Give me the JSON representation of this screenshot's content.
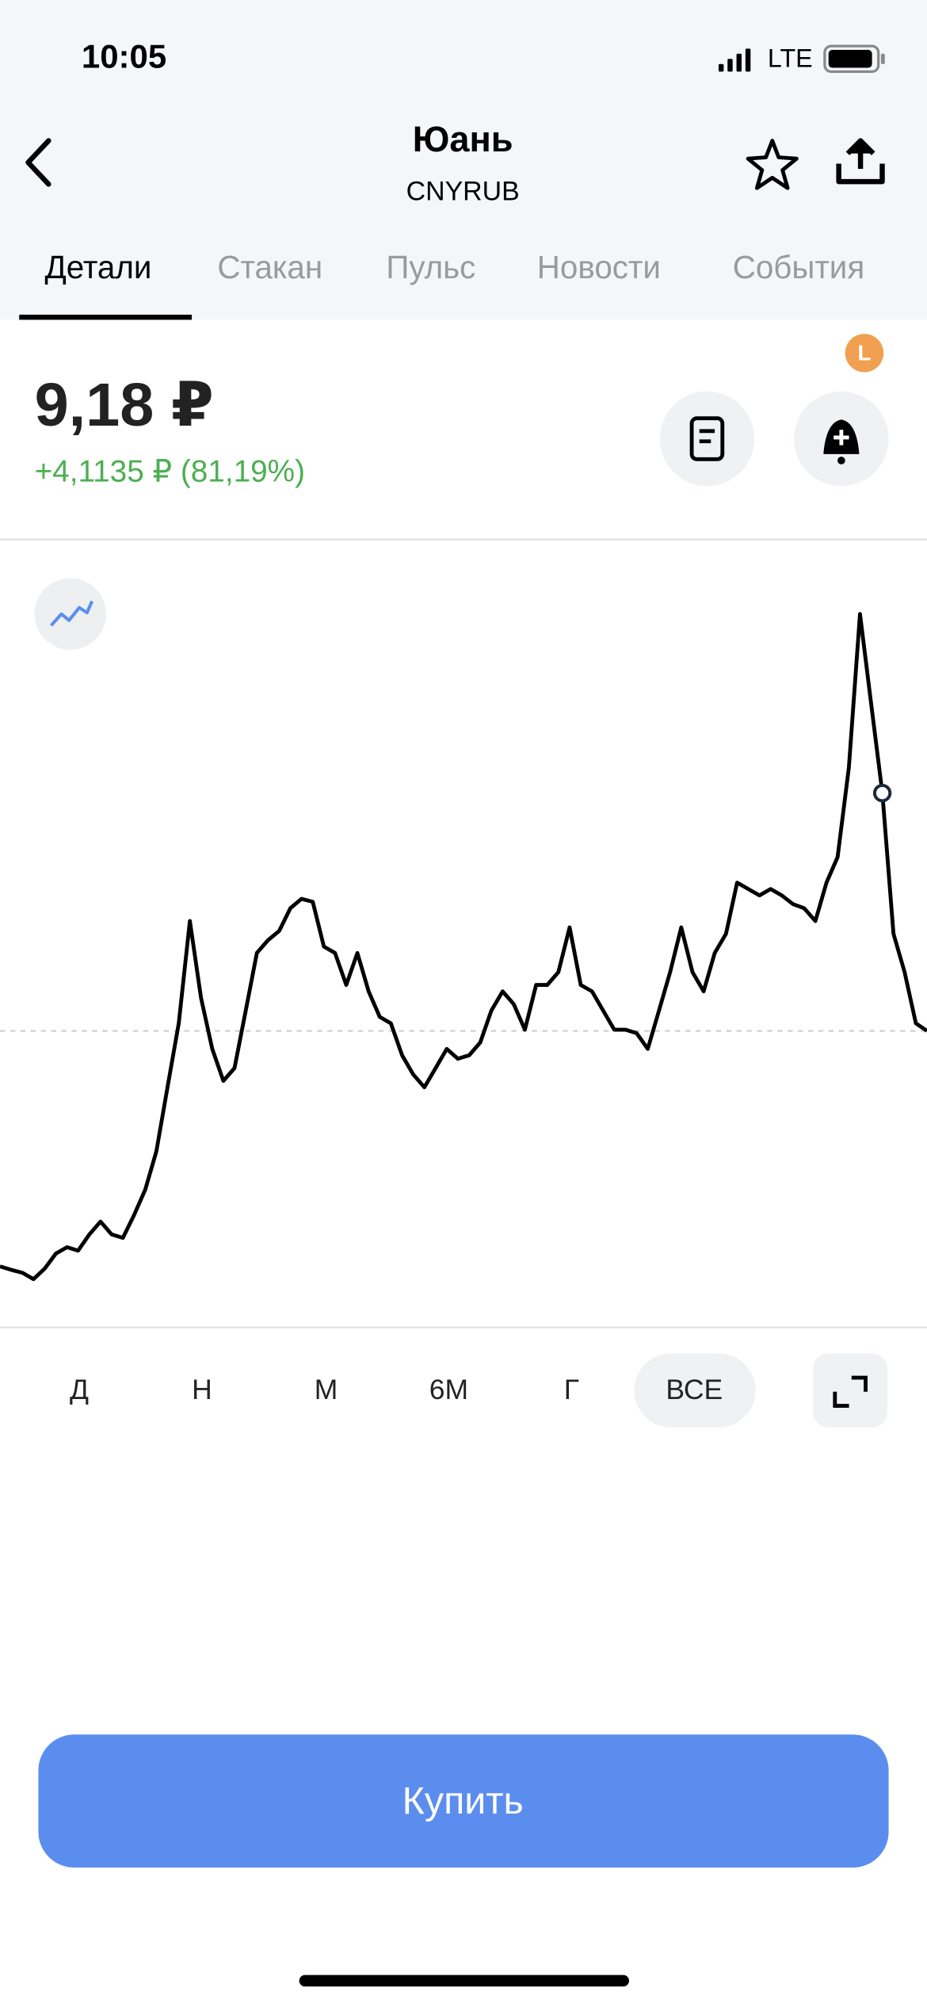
{
  "status": {
    "time": "10:05",
    "network": "LTE"
  },
  "header": {
    "title": "Юань",
    "subtitle": "CNYRUB"
  },
  "tabs": [
    "Детали",
    "Стакан",
    "Пульс",
    "Новости",
    "События"
  ],
  "price": {
    "value": "9,18 ₽",
    "change": "+4,1135 ₽ (81,19%)",
    "badge": "L"
  },
  "chart": {
    "type": "line",
    "color": "#000000",
    "values": [
      5.13,
      5.07,
      5.02,
      4.91,
      5.09,
      5.35,
      5.46,
      5.4,
      5.68,
      5.9,
      5.68,
      5.62,
      6.01,
      6.45,
      7.11,
      8.21,
      9.31,
      11.07,
      9.75,
      8.87,
      8.32,
      8.54,
      9.53,
      10.52,
      10.74,
      10.9,
      11.29,
      11.45,
      11.4,
      10.63,
      10.52,
      9.97,
      10.52,
      9.86,
      9.42,
      9.31,
      8.76,
      8.43,
      8.21,
      8.54,
      8.87,
      8.7,
      8.76,
      8.98,
      9.53,
      9.86,
      9.64,
      9.2,
      9.97,
      9.97,
      10.19,
      10.96,
      9.97,
      9.86,
      9.53,
      9.2,
      9.2,
      9.14,
      8.87,
      9.53,
      10.19,
      10.96,
      10.19,
      9.86,
      10.52,
      10.85,
      11.73,
      11.62,
      11.51,
      11.62,
      11.51,
      11.36,
      11.29,
      11.07,
      11.73,
      12.17,
      13.71,
      16.35,
      14.81,
      13.27,
      10.85,
      10.19,
      9.31,
      9.18
    ]
  },
  "periods": [
    "Д",
    "Н",
    "М",
    "6М",
    "Г",
    "ВСЕ"
  ],
  "buy": "Купить"
}
